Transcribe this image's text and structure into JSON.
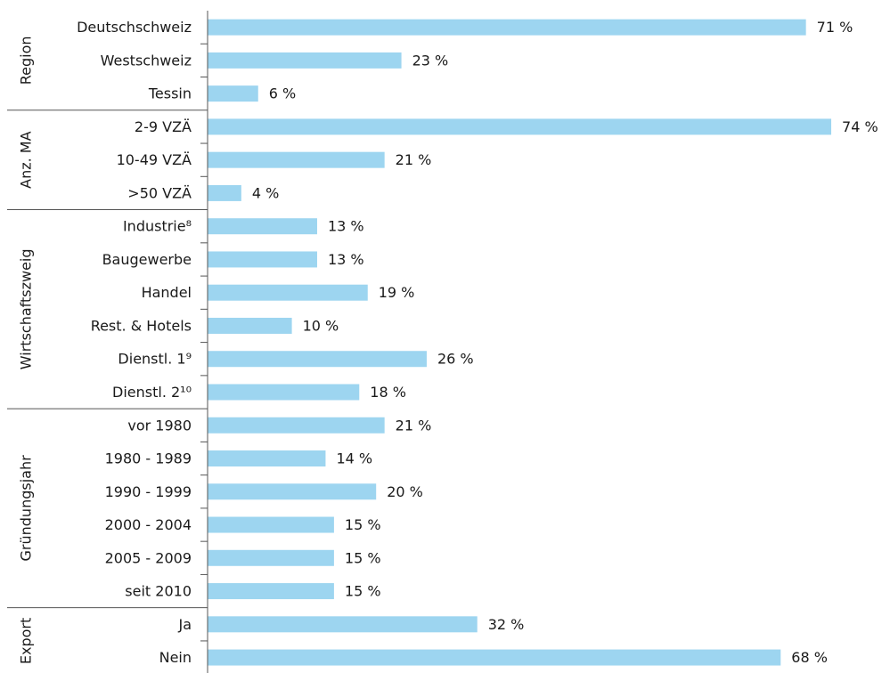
{
  "chart_data": {
    "type": "bar",
    "color": "#9dd5f0",
    "groups": [
      {
        "name": "Region",
        "categories": [
          "Deutschschweiz",
          "Westschweiz",
          "Tessin"
        ],
        "values": [
          71,
          23,
          6
        ],
        "value_labels": [
          "71 %",
          "23 %",
          "6 %"
        ]
      },
      {
        "name": "Anz. MA",
        "categories": [
          "2-9 VZÄ",
          "10-49 VZÄ",
          ">50 VZÄ"
        ],
        "values": [
          74,
          21,
          4
        ],
        "value_labels": [
          "74 %",
          "21 %",
          "4 %"
        ]
      },
      {
        "name": "Wirtschaftszweig",
        "categories": [
          "Industrie⁸",
          "Baugewerbe",
          "Handel",
          "Rest. & Hotels",
          "Dienstl. 1⁹",
          "Dienstl. 2¹⁰"
        ],
        "values": [
          13,
          13,
          19,
          10,
          26,
          18
        ],
        "value_labels": [
          "13 %",
          "13 %",
          "19 %",
          "10 %",
          "26 %",
          "18 %"
        ]
      },
      {
        "name": "Gründungsjahr",
        "categories": [
          "vor 1980",
          "1980 - 1989",
          "1990 - 1999",
          "2000 - 2004",
          "2005 - 2009",
          "seit 2010"
        ],
        "values": [
          21,
          14,
          20,
          15,
          15,
          15
        ],
        "value_labels": [
          "21 %",
          "14 %",
          "20 %",
          "15 %",
          "15 %",
          "15 %"
        ]
      },
      {
        "name": "Export",
        "categories": [
          "Ja",
          "Nein"
        ],
        "values": [
          32,
          68
        ],
        "value_labels": [
          "32 %",
          "68 %"
        ]
      }
    ]
  }
}
